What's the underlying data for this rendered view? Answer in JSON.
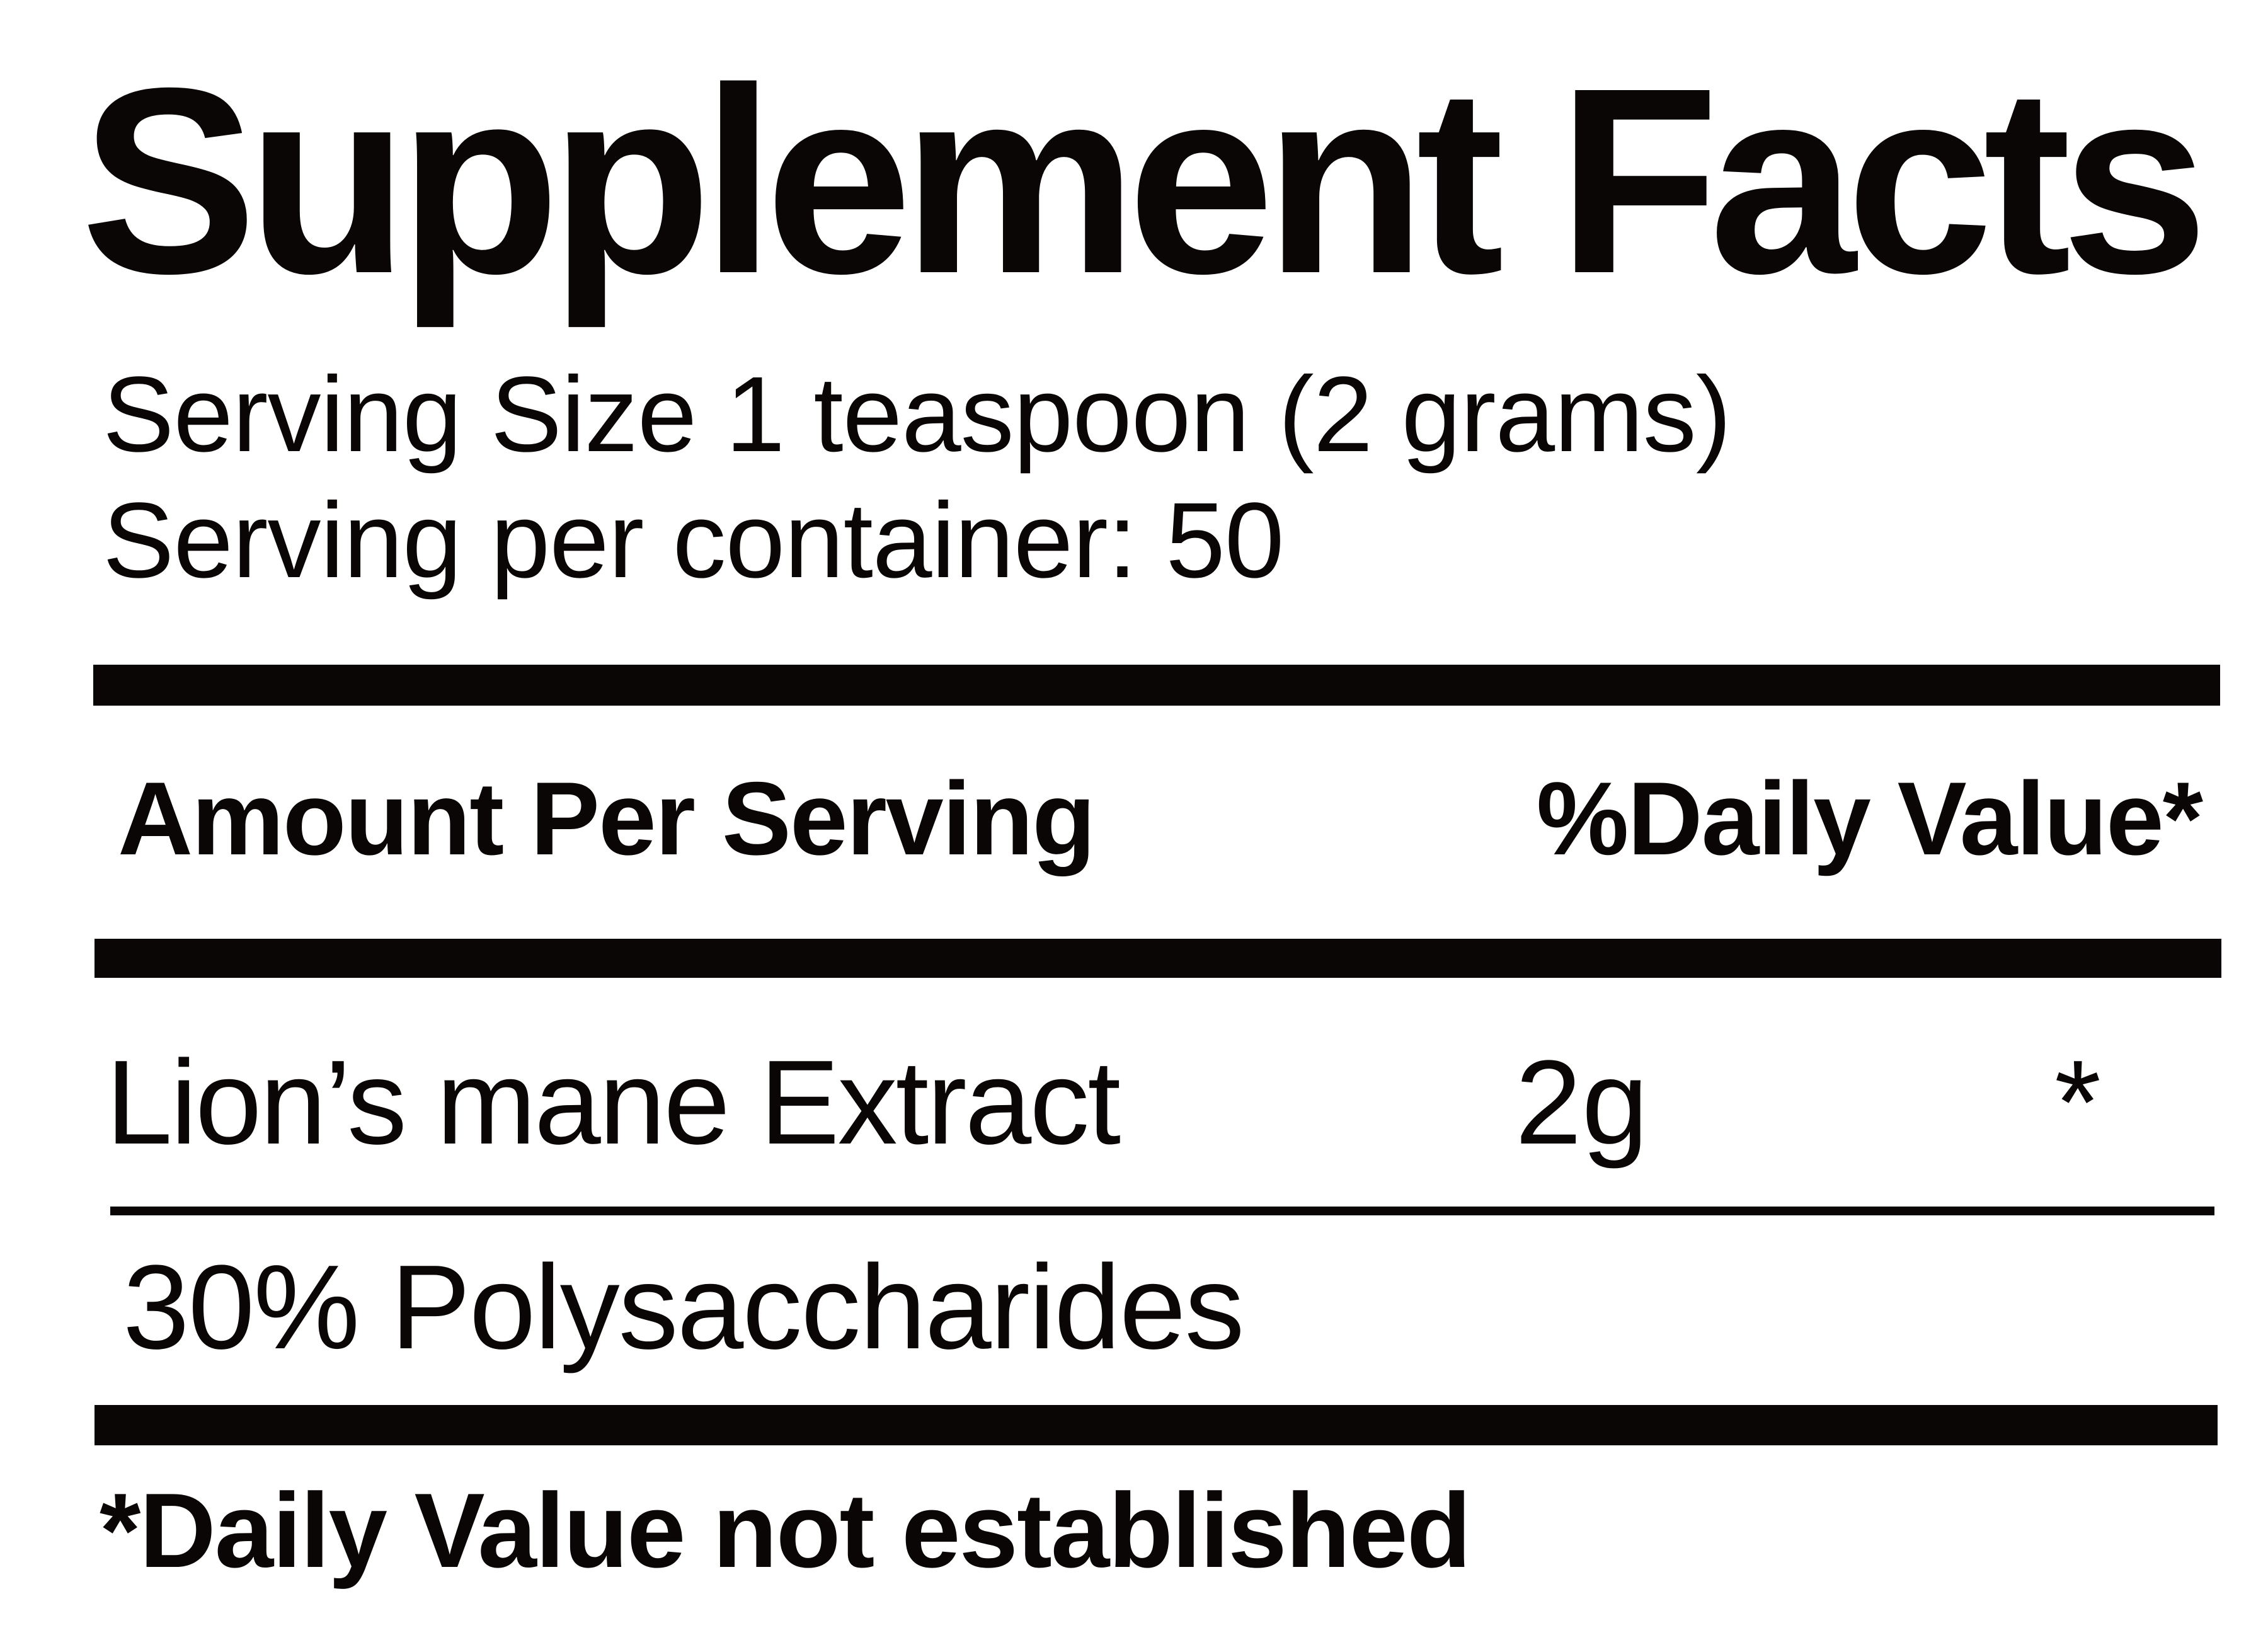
{
  "colors": {
    "text": "#0a0605",
    "background": "#ffffff"
  },
  "title": "Supplement Facts",
  "serving": {
    "size_line": "Serving Size 1 teaspoon (2 grams)",
    "per_container_line": "Serving per container: 50"
  },
  "table": {
    "header": {
      "amount_label": "Amount Per Serving",
      "daily_value_label": "%Daily Value*"
    },
    "rows": [
      {
        "name": "Lion’s mane Extract",
        "amount": "2g",
        "daily_value": "*"
      },
      {
        "name": "30% Polysaccharides",
        "amount": "",
        "daily_value": ""
      }
    ]
  },
  "footnote": "*Daily Value not established"
}
